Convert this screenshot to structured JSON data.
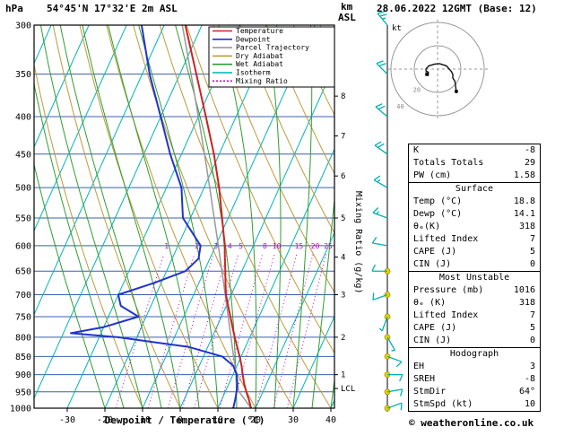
{
  "header": {
    "station": "54°45'N 17°32'E 2m ASL",
    "datetime": "28.06.2022 12GMT (Base: 12)",
    "copyright": "© weatheronline.co.uk"
  },
  "axes": {
    "pressure_unit": "hPa",
    "pressure_ticks": [
      300,
      350,
      400,
      450,
      500,
      550,
      600,
      650,
      700,
      750,
      800,
      850,
      900,
      950,
      1000
    ],
    "temp_ticks": [
      -30,
      -20,
      -10,
      0,
      10,
      20,
      30,
      40
    ],
    "xlabel": "Dewpoint / Temperature (°C)",
    "right_unit_line1": "km",
    "right_unit_line2": "ASL",
    "km_ticks": [
      {
        "km": 1,
        "p": 900
      },
      {
        "km": 2,
        "p": 800
      },
      {
        "km": 3,
        "p": 700
      },
      {
        "km": 4,
        "p": 622
      },
      {
        "km": 5,
        "p": 550
      },
      {
        "km": 6,
        "p": 482
      },
      {
        "km": 7,
        "p": 425
      },
      {
        "km": 8,
        "p": 375
      }
    ],
    "lcl": {
      "label": "LCL",
      "p": 940
    },
    "mixing_axis_label": "Mixing Ratio (g/kg)"
  },
  "colors": {
    "temperature": "#cc2222",
    "dewpoint": "#2233cc",
    "parcel": "#999999",
    "dry_adiabat": "#bc9a3c",
    "wet_adiabat": "#2f9e2f",
    "isotherm": "#00b4b4",
    "mixing_ratio": "#cc00cc",
    "grid": "#3a5fb0",
    "wind_barb": "#00b0b0",
    "level_dot": "#e8d400",
    "level_dot_edge": "#a89000"
  },
  "legend": [
    {
      "label": "Temperature",
      "color": "temperature",
      "dashed": false
    },
    {
      "label": "Dewpoint",
      "color": "dewpoint",
      "dashed": false
    },
    {
      "label": "Parcel Trajectory",
      "color": "parcel",
      "dashed": false
    },
    {
      "label": "Dry Adiabat",
      "color": "dry_adiabat",
      "dashed": false
    },
    {
      "label": "Wet Adiabat",
      "color": "wet_adiabat",
      "dashed": false
    },
    {
      "label": "Isotherm",
      "color": "isotherm",
      "dashed": false
    },
    {
      "label": "Mixing Ratio",
      "color": "mixing_ratio",
      "dashed": true
    }
  ],
  "chart_data": {
    "type": "skewt-logp",
    "pressure_range": [
      300,
      1000
    ],
    "temp_axis_range": [
      -30,
      40
    ],
    "temperature_profile": {
      "pressure": [
        1000,
        975,
        950,
        925,
        900,
        875,
        850,
        825,
        800,
        775,
        750,
        725,
        700,
        675,
        650,
        625,
        600,
        550,
        500,
        450,
        400,
        350,
        300
      ],
      "temp": [
        18.8,
        17.3,
        15.6,
        14.0,
        12.6,
        11.2,
        9.6,
        7.8,
        6.0,
        4.2,
        2.4,
        0.5,
        -1.4,
        -2.9,
        -4.4,
        -6.0,
        -7.6,
        -11.6,
        -16.0,
        -21.4,
        -28.0,
        -35.6,
        -44.4
      ]
    },
    "dewpoint_profile": {
      "pressure": [
        1000,
        975,
        950,
        925,
        900,
        875,
        850,
        825,
        800,
        790,
        775,
        750,
        725,
        700,
        675,
        650,
        625,
        600,
        550,
        500,
        450,
        400,
        350,
        300
      ],
      "temp": [
        14.1,
        13.6,
        13.0,
        12.2,
        11.0,
        9.0,
        5.0,
        -5.0,
        -25.0,
        -38.0,
        -30.0,
        -22.0,
        -28.0,
        -30.0,
        -22.0,
        -15.0,
        -13.0,
        -14.0,
        -22.0,
        -26.0,
        -33.0,
        -40.0,
        -48.0,
        -56.0
      ]
    },
    "parcel_profile": {
      "pressure": [
        1000,
        948,
        900,
        850,
        800,
        750,
        700,
        650,
        600,
        550,
        500,
        450,
        400,
        350,
        300
      ],
      "temp": [
        18.8,
        13.5,
        10.9,
        8.0,
        5.0,
        1.8,
        -1.6,
        -5.3,
        -9.3,
        -13.7,
        -18.5,
        -23.9,
        -30.0,
        -37.0,
        -45.2
      ]
    },
    "mixing_ratio_labels": [
      1,
      2,
      3,
      4,
      5,
      8,
      10,
      15,
      20,
      25
    ],
    "winds": [
      {
        "p": 1000,
        "dir": 70,
        "spd": 8
      },
      {
        "p": 950,
        "dir": 80,
        "spd": 10
      },
      {
        "p": 900,
        "dir": 90,
        "spd": 10
      },
      {
        "p": 850,
        "dir": 110,
        "spd": 8
      },
      {
        "p": 800,
        "dir": 150,
        "spd": 5
      },
      {
        "p": 750,
        "dir": 200,
        "spd": 5
      },
      {
        "p": 700,
        "dir": 250,
        "spd": 8
      },
      {
        "p": 650,
        "dir": 270,
        "spd": 10
      },
      {
        "p": 600,
        "dir": 280,
        "spd": 12
      },
      {
        "p": 550,
        "dir": 290,
        "spd": 14
      },
      {
        "p": 500,
        "dir": 300,
        "spd": 15
      },
      {
        "p": 450,
        "dir": 305,
        "spd": 18
      },
      {
        "p": 400,
        "dir": 310,
        "spd": 20
      },
      {
        "p": 350,
        "dir": 315,
        "spd": 22
      },
      {
        "p": 300,
        "dir": 320,
        "spd": 25
      }
    ],
    "wind_dot_levels": [
      650,
      700,
      750,
      800,
      850,
      900,
      950,
      1000
    ],
    "hodograph": {
      "unit": "kt",
      "rings": [
        20,
        40
      ],
      "storm_dir": 64,
      "storm_spd": 10
    }
  },
  "panel": {
    "sections": [
      {
        "rows": [
          {
            "label": "K",
            "value": "-8"
          },
          {
            "label": "Totals Totals",
            "value": "29"
          },
          {
            "label": "PW (cm)",
            "value": "1.58"
          }
        ]
      },
      {
        "title": "Surface",
        "rows": [
          {
            "label": "Temp (°C)",
            "value": "18.8"
          },
          {
            "label": "Dewp (°C)",
            "value": "14.1"
          },
          {
            "label": "θₑ(K)",
            "value": "318"
          },
          {
            "label": "Lifted Index",
            "value": "7"
          },
          {
            "label": "CAPE (J)",
            "value": "5"
          },
          {
            "label": "CIN (J)",
            "value": "0"
          }
        ]
      },
      {
        "title": "Most Unstable",
        "rows": [
          {
            "label": "Pressure (mb)",
            "value": "1016"
          },
          {
            "label": "θₑ (K)",
            "value": "318"
          },
          {
            "label": "Lifted Index",
            "value": "7"
          },
          {
            "label": "CAPE (J)",
            "value": "5"
          },
          {
            "label": "CIN (J)",
            "value": "0"
          }
        ]
      },
      {
        "title": "Hodograph",
        "rows": [
          {
            "label": "EH",
            "value": "3"
          },
          {
            "label": "SREH",
            "value": "-8"
          },
          {
            "label": "StmDir",
            "value": "64°"
          },
          {
            "label": "StmSpd (kt)",
            "value": "10"
          }
        ]
      }
    ]
  }
}
